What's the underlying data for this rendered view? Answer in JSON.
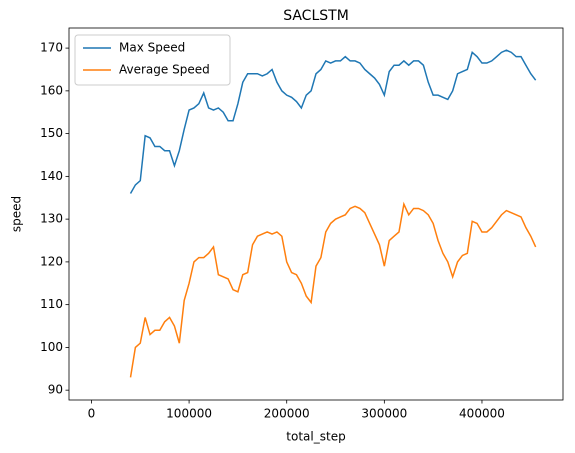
{
  "chart_data": {
    "type": "line",
    "title": "SACLSTM",
    "xlabel": "total_step",
    "ylabel": "speed",
    "x": [
      40000,
      45000,
      50000,
      55000,
      60000,
      65000,
      70000,
      75000,
      80000,
      85000,
      90000,
      95000,
      100000,
      105000,
      110000,
      115000,
      120000,
      125000,
      130000,
      135000,
      140000,
      145000,
      150000,
      155000,
      160000,
      165000,
      170000,
      175000,
      180000,
      185000,
      190000,
      195000,
      200000,
      205000,
      210000,
      215000,
      220000,
      225000,
      230000,
      235000,
      240000,
      245000,
      250000,
      255000,
      260000,
      265000,
      270000,
      275000,
      280000,
      285000,
      290000,
      295000,
      300000,
      305000,
      310000,
      315000,
      320000,
      325000,
      330000,
      335000,
      340000,
      345000,
      350000,
      355000,
      360000,
      365000,
      370000,
      375000,
      380000,
      385000,
      390000,
      395000,
      400000,
      405000,
      410000,
      415000,
      420000,
      425000,
      430000,
      435000,
      440000,
      445000,
      450000,
      455000
    ],
    "series": [
      {
        "name": "Max Speed",
        "color": "#1f77b4",
        "values": [
          136,
          138,
          139,
          149.5,
          149,
          147,
          147,
          146,
          146,
          142.5,
          146,
          151,
          155.5,
          156,
          157,
          159.5,
          156,
          155.5,
          156,
          155,
          153,
          153,
          157,
          162,
          164,
          164,
          164,
          163.5,
          164,
          165,
          162,
          160,
          159,
          158.5,
          157.5,
          156,
          159,
          160,
          164,
          165,
          167,
          166.5,
          167,
          167,
          168,
          167,
          167,
          166.5,
          165,
          164,
          163,
          161.5,
          159,
          164.5,
          166,
          166,
          167,
          166,
          167,
          167,
          166,
          162,
          159,
          159,
          158.5,
          158,
          160,
          164,
          164.5,
          165,
          169,
          168,
          166.5,
          166.5,
          167,
          168,
          169,
          169.5,
          169,
          168,
          168,
          166,
          164,
          162.5
        ]
      },
      {
        "name": "Average Speed",
        "color": "#ff7f0e",
        "values": [
          93,
          100,
          101,
          107,
          103,
          104,
          104,
          106,
          107,
          105,
          101,
          111,
          115,
          120,
          121,
          121,
          122,
          123.5,
          117,
          116.5,
          116,
          113.5,
          113,
          117,
          117.5,
          124,
          126,
          126.5,
          127,
          126.5,
          127,
          126,
          120,
          117.5,
          117,
          115,
          112,
          110.5,
          119,
          121,
          127,
          129,
          130,
          130.5,
          131,
          132.5,
          133,
          132.5,
          131.5,
          129,
          126.5,
          124,
          119,
          125,
          126,
          127,
          133.5,
          131,
          132.5,
          132.5,
          132,
          131,
          129,
          125,
          122,
          120,
          116.5,
          120,
          121.5,
          122,
          129.5,
          129,
          127,
          127,
          128,
          129.5,
          131,
          132,
          131.5,
          131,
          130.5,
          128,
          126,
          123.5
        ]
      }
    ],
    "xlim": [
      -23000,
      483000
    ],
    "xticks": [
      0,
      100000,
      200000,
      300000,
      400000
    ],
    "ylim": [
      87.7,
      174.7
    ],
    "yticks": [
      90,
      100,
      110,
      120,
      130,
      140,
      150,
      160,
      170
    ],
    "legend": "upper left"
  }
}
